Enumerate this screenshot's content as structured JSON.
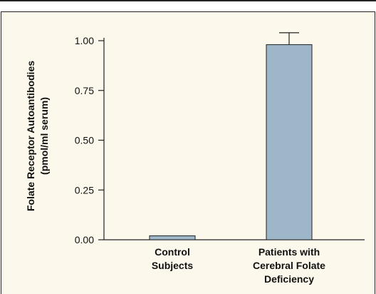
{
  "chart_data": {
    "type": "bar",
    "title": "",
    "ylabel_lines": [
      "Folate Receptor Autoantibodies",
      "(pmol/ml serum)"
    ],
    "xlabel": "",
    "categories": [
      {
        "lines": [
          "Control",
          "Subjects"
        ]
      },
      {
        "lines": [
          "Patients with",
          "Cerebral Folate",
          "Deficiency"
        ]
      }
    ],
    "values": [
      0.02,
      0.98
    ],
    "error_upper": [
      null,
      1.04
    ],
    "ylim": [
      0,
      1.1
    ],
    "yticks": [
      0.0,
      0.25,
      0.5,
      0.75,
      1.0
    ],
    "ytick_labels": [
      "0.00",
      "0.25",
      "0.50",
      "0.75",
      "1.00"
    ],
    "bar_color": "#9db6c8",
    "grid": false
  },
  "colors": {
    "background": "#fdf8ec",
    "axis": "#222222"
  }
}
